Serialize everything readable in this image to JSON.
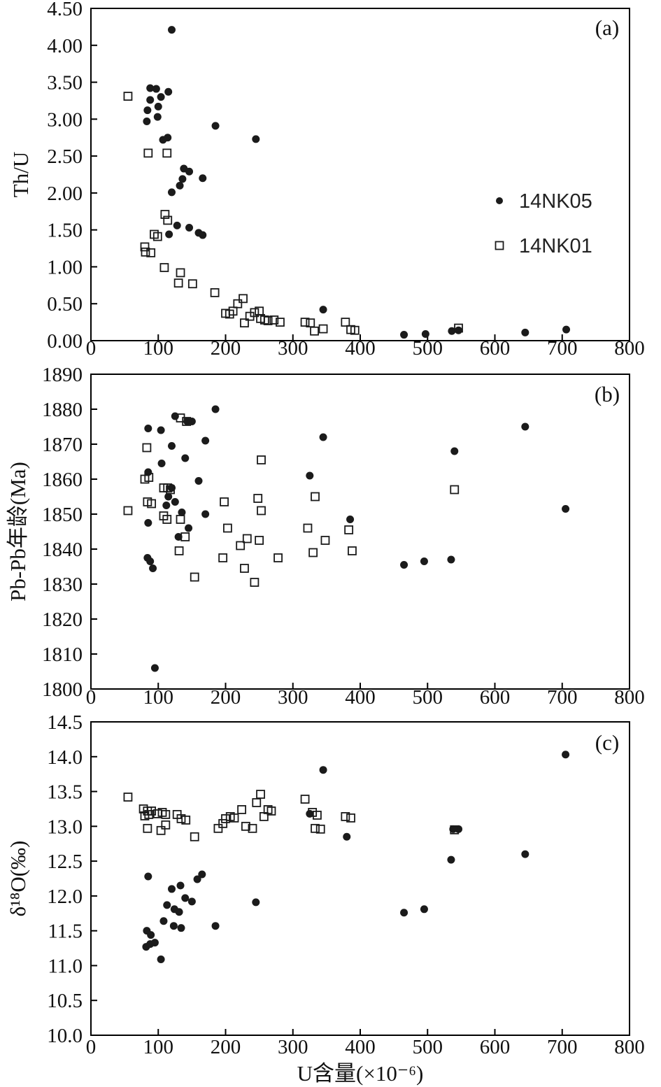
{
  "figure": {
    "xlabel": "U含量(×10⁻⁶)",
    "marker_color": "#1b1b1b",
    "axis_color": "#000000",
    "background": "#ffffff"
  },
  "legend": {
    "position": "inside-right-of-panel-a",
    "items": [
      {
        "name": "14NK05",
        "marker": "filled-circle"
      },
      {
        "name": "14NK01",
        "marker": "open-square"
      }
    ]
  },
  "xticks": [
    {
      "value": 0,
      "label": "0"
    },
    {
      "value": 100,
      "label": "100"
    },
    {
      "value": 200,
      "label": "200"
    },
    {
      "value": 300,
      "label": "300"
    },
    {
      "value": 400,
      "label": "400"
    },
    {
      "value": 500,
      "label": "500"
    },
    {
      "value": 600,
      "label": "600"
    },
    {
      "value": 700,
      "label": "700"
    },
    {
      "value": 800,
      "label": "800"
    }
  ],
  "chart_data": [
    {
      "type": "scatter",
      "panel_label": "(a)",
      "ylabel": "Th/U",
      "xlabel": "U含量(×10⁻⁶)",
      "xlim": [
        0,
        800
      ],
      "ylim": [
        0,
        4.5
      ],
      "grid": false,
      "yticks": [
        {
          "value": 0.0,
          "label": "0.00"
        },
        {
          "value": 0.5,
          "label": "0.50"
        },
        {
          "value": 1.0,
          "label": "1.00"
        },
        {
          "value": 1.5,
          "label": "1.50"
        },
        {
          "value": 2.0,
          "label": "2.00"
        },
        {
          "value": 2.5,
          "label": "2.50"
        },
        {
          "value": 3.0,
          "label": "3.00"
        },
        {
          "value": 3.5,
          "label": "3.50"
        },
        {
          "value": 4.0,
          "label": "4.00"
        },
        {
          "value": 4.5,
          "label": "4.50"
        }
      ],
      "series": [
        {
          "name": "14NK05",
          "marker": "filled-circle",
          "points": [
            [
              120,
              4.21
            ],
            [
              88,
              3.42
            ],
            [
              97,
              3.41
            ],
            [
              115,
              3.37
            ],
            [
              88,
              3.26
            ],
            [
              104,
              3.3
            ],
            [
              84,
              3.12
            ],
            [
              100,
              3.17
            ],
            [
              83,
              2.97
            ],
            [
              99,
              3.03
            ],
            [
              185,
              2.91
            ],
            [
              107,
              2.72
            ],
            [
              114,
              2.75
            ],
            [
              245,
              2.73
            ],
            [
              138,
              2.33
            ],
            [
              146,
              2.29
            ],
            [
              136,
              2.19
            ],
            [
              166,
              2.2
            ],
            [
              120,
              2.01
            ],
            [
              132,
              2.1
            ],
            [
              128,
              1.56
            ],
            [
              146,
              1.53
            ],
            [
              116,
              1.44
            ],
            [
              160,
              1.46
            ],
            [
              166,
              1.43
            ],
            [
              345,
              0.42
            ],
            [
              465,
              0.08
            ],
            [
              497,
              0.09
            ],
            [
              536,
              0.13
            ],
            [
              546,
              0.14
            ],
            [
              645,
              0.11
            ],
            [
              706,
              0.15
            ]
          ]
        },
        {
          "name": "14NK01",
          "marker": "open-square",
          "points": [
            [
              55,
              3.31
            ],
            [
              85,
              2.54
            ],
            [
              113,
              2.54
            ],
            [
              110,
              1.71
            ],
            [
              114,
              1.63
            ],
            [
              94,
              1.44
            ],
            [
              99,
              1.41
            ],
            [
              80,
              1.27
            ],
            [
              81,
              1.2
            ],
            [
              89,
              1.19
            ],
            [
              109,
              0.99
            ],
            [
              133,
              0.92
            ],
            [
              130,
              0.78
            ],
            [
              151,
              0.77
            ],
            [
              184,
              0.65
            ],
            [
              200,
              0.37
            ],
            [
              206,
              0.36
            ],
            [
              211,
              0.4
            ],
            [
              218,
              0.5
            ],
            [
              226,
              0.57
            ],
            [
              228,
              0.24
            ],
            [
              236,
              0.33
            ],
            [
              243,
              0.38
            ],
            [
              250,
              0.4
            ],
            [
              252,
              0.3
            ],
            [
              258,
              0.28
            ],
            [
              263,
              0.27
            ],
            [
              272,
              0.28
            ],
            [
              281,
              0.25
            ],
            [
              318,
              0.25
            ],
            [
              326,
              0.24
            ],
            [
              332,
              0.13
            ],
            [
              345,
              0.16
            ],
            [
              378,
              0.25
            ],
            [
              386,
              0.15
            ],
            [
              392,
              0.14
            ],
            [
              546,
              0.17
            ]
          ]
        }
      ]
    },
    {
      "type": "scatter",
      "panel_label": "(b)",
      "ylabel": "Pb-Pb年龄(Ma)",
      "xlabel": "U含量(×10⁻⁶)",
      "xlim": [
        0,
        800
      ],
      "ylim": [
        1800,
        1890
      ],
      "grid": false,
      "yticks": [
        {
          "value": 1800,
          "label": "1800"
        },
        {
          "value": 1810,
          "label": "1810"
        },
        {
          "value": 1820,
          "label": "1820"
        },
        {
          "value": 1830,
          "label": "1830"
        },
        {
          "value": 1840,
          "label": "1840"
        },
        {
          "value": 1850,
          "label": "1850"
        },
        {
          "value": 1860,
          "label": "1860"
        },
        {
          "value": 1870,
          "label": "1870"
        },
        {
          "value": 1880,
          "label": "1880"
        },
        {
          "value": 1890,
          "label": "1890"
        }
      ],
      "series": [
        {
          "name": "14NK05",
          "marker": "filled-circle",
          "points": [
            [
              85,
              1874.5
            ],
            [
              104,
              1874
            ],
            [
              125,
              1878
            ],
            [
              143,
              1876.5
            ],
            [
              150,
              1876.5
            ],
            [
              185,
              1880
            ],
            [
              120,
              1869.5
            ],
            [
              170,
              1871
            ],
            [
              105,
              1864.5
            ],
            [
              140,
              1866
            ],
            [
              85,
              1862
            ],
            [
              345,
              1872
            ],
            [
              645,
              1875
            ],
            [
              325,
              1861
            ],
            [
              540,
              1868
            ],
            [
              112,
              1852.5
            ],
            [
              115,
              1855
            ],
            [
              120,
              1857.5
            ],
            [
              125,
              1853.5
            ],
            [
              135,
              1850.5
            ],
            [
              160,
              1859.5
            ],
            [
              170,
              1850
            ],
            [
              85,
              1847.5
            ],
            [
              130,
              1843.5
            ],
            [
              145,
              1846
            ],
            [
              385,
              1848.5
            ],
            [
              84,
              1837.5
            ],
            [
              88,
              1836.5
            ],
            [
              92,
              1834.5
            ],
            [
              465,
              1835.5
            ],
            [
              495,
              1836.5
            ],
            [
              535,
              1837
            ],
            [
              705,
              1851.5
            ],
            [
              95,
              1806
            ]
          ]
        },
        {
          "name": "14NK01",
          "marker": "open-square",
          "points": [
            [
              55,
              1851
            ],
            [
              83,
              1869
            ],
            [
              80,
              1860
            ],
            [
              86,
              1860.5
            ],
            [
              133,
              1877.5
            ],
            [
              142,
              1876.5
            ],
            [
              253,
              1865.5
            ],
            [
              108,
              1857.5
            ],
            [
              114,
              1857.5
            ],
            [
              118,
              1857
            ],
            [
              84,
              1853.5
            ],
            [
              90,
              1853
            ],
            [
              108,
              1849.5
            ],
            [
              113,
              1848.5
            ],
            [
              133,
              1848.5
            ],
            [
              140,
              1843.5
            ],
            [
              131,
              1839.5
            ],
            [
              154,
              1832
            ],
            [
              198,
              1853.5
            ],
            [
              203,
              1846
            ],
            [
              196,
              1837.5
            ],
            [
              222,
              1841
            ],
            [
              232,
              1843
            ],
            [
              228,
              1834.5
            ],
            [
              243,
              1830.5
            ],
            [
              248,
              1854.5
            ],
            [
              253,
              1851
            ],
            [
              250,
              1842.5
            ],
            [
              278,
              1837.5
            ],
            [
              322,
              1846
            ],
            [
              330,
              1839
            ],
            [
              333,
              1855
            ],
            [
              348,
              1842.5
            ],
            [
              383,
              1845.5
            ],
            [
              388,
              1839.5
            ],
            [
              540,
              1857
            ]
          ]
        }
      ]
    },
    {
      "type": "scatter",
      "panel_label": "(c)",
      "ylabel": "δ¹⁸O(‰)",
      "xlabel": "U含量(×10⁻⁶)",
      "xlim": [
        0,
        800
      ],
      "ylim": [
        10.0,
        14.5
      ],
      "grid": false,
      "yticks": [
        {
          "value": 10.0,
          "label": "10.0"
        },
        {
          "value": 10.5,
          "label": "10.5"
        },
        {
          "value": 11.0,
          "label": "11.0"
        },
        {
          "value": 11.5,
          "label": "11.5"
        },
        {
          "value": 12.0,
          "label": "12.0"
        },
        {
          "value": 12.5,
          "label": "12.5"
        },
        {
          "value": 13.0,
          "label": "13.0"
        },
        {
          "value": 13.5,
          "label": "13.5"
        },
        {
          "value": 14.0,
          "label": "14.0"
        },
        {
          "value": 14.5,
          "label": "14.5"
        }
      ],
      "series": [
        {
          "name": "14NK05",
          "marker": "filled-circle",
          "points": [
            [
              705,
              14.03
            ],
            [
              345,
              13.81
            ],
            [
              325,
              13.18
            ],
            [
              380,
              12.85
            ],
            [
              538,
              12.96
            ],
            [
              546,
              12.96
            ],
            [
              645,
              12.6
            ],
            [
              535,
              12.52
            ],
            [
              85,
              12.28
            ],
            [
              158,
              12.24
            ],
            [
              165,
              12.31
            ],
            [
              120,
              12.1
            ],
            [
              133,
              12.15
            ],
            [
              140,
              11.97
            ],
            [
              150,
              11.92
            ],
            [
              113,
              11.87
            ],
            [
              124,
              11.81
            ],
            [
              131,
              11.77
            ],
            [
              245,
              11.91
            ],
            [
              108,
              11.64
            ],
            [
              123,
              11.57
            ],
            [
              134,
              11.54
            ],
            [
              185,
              11.57
            ],
            [
              465,
              11.76
            ],
            [
              495,
              11.81
            ],
            [
              83,
              11.5
            ],
            [
              89,
              11.44
            ],
            [
              82,
              11.27
            ],
            [
              88,
              11.31
            ],
            [
              95,
              11.33
            ],
            [
              104,
              11.09
            ]
          ]
        },
        {
          "name": "14NK01",
          "marker": "open-square",
          "points": [
            [
              55,
              13.42
            ],
            [
              78,
              13.25
            ],
            [
              84,
              13.22
            ],
            [
              90,
              13.22
            ],
            [
              80,
              13.15
            ],
            [
              86,
              13.17
            ],
            [
              99,
              13.18
            ],
            [
              106,
              13.2
            ],
            [
              111,
              13.17
            ],
            [
              84,
              12.97
            ],
            [
              104,
              12.94
            ],
            [
              111,
              13.02
            ],
            [
              128,
              13.17
            ],
            [
              134,
              13.11
            ],
            [
              141,
              13.09
            ],
            [
              154,
              12.85
            ],
            [
              189,
              12.97
            ],
            [
              196,
              13.04
            ],
            [
              200,
              13.11
            ],
            [
              207,
              13.14
            ],
            [
              213,
              13.12
            ],
            [
              224,
              13.24
            ],
            [
              230,
              13.0
            ],
            [
              240,
              12.97
            ],
            [
              246,
              13.34
            ],
            [
              252,
              13.46
            ],
            [
              257,
              13.14
            ],
            [
              263,
              13.24
            ],
            [
              268,
              13.22
            ],
            [
              318,
              13.39
            ],
            [
              329,
              13.2
            ],
            [
              336,
              13.16
            ],
            [
              333,
              12.97
            ],
            [
              341,
              12.96
            ],
            [
              378,
              13.14
            ],
            [
              386,
              13.12
            ],
            [
              540,
              12.95
            ]
          ]
        }
      ]
    }
  ]
}
